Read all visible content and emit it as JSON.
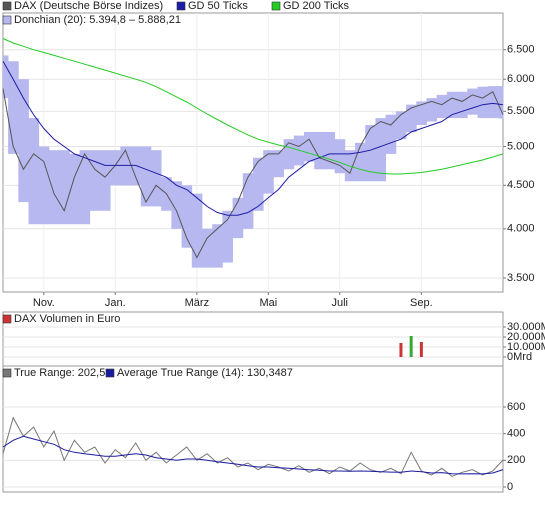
{
  "chart_data": [
    {
      "type": "line",
      "log_y": true,
      "grid": true,
      "categories": [
        null,
        null,
        null,
        null,
        "Nov.",
        null,
        null,
        null,
        null,
        null,
        null,
        "Jan.",
        null,
        null,
        null,
        null,
        null,
        null,
        null,
        "März",
        null,
        null,
        null,
        null,
        null,
        null,
        "Mai",
        null,
        null,
        null,
        null,
        null,
        null,
        "Juli",
        null,
        null,
        null,
        null,
        null,
        null,
        null,
        "Sep.",
        null,
        null,
        null,
        null,
        null,
        null,
        null,
        null
      ],
      "ylim": [
        3370,
        7180
      ],
      "yticks": [
        {
          "value": 3500,
          "label": "3.500"
        },
        {
          "value": 4000,
          "label": "4.000"
        },
        {
          "value": 4500,
          "label": "4.500"
        },
        {
          "value": 5000,
          "label": "5.000"
        },
        {
          "value": 5500,
          "label": "5.500"
        },
        {
          "value": 6000,
          "label": "6.000"
        },
        {
          "value": 6500,
          "label": "6.500"
        }
      ],
      "series": [
        {
          "name": "DAX (Deutsche Börse Indizes)",
          "color": "#555555",
          "values": [
            5850,
            5000,
            4700,
            4900,
            4800,
            4400,
            4200,
            4600,
            4900,
            4700,
            4600,
            4750,
            4950,
            4600,
            4300,
            4500,
            4400,
            4200,
            3900,
            3700,
            3900,
            4000,
            4100,
            4300,
            4600,
            4800,
            4900,
            4900,
            5050,
            5000,
            5100,
            4850,
            4800,
            4750,
            4650,
            5000,
            5250,
            5350,
            5300,
            5450,
            5550,
            5600,
            5650,
            5600,
            5700,
            5650,
            5750,
            5700,
            5800,
            5450
          ]
        },
        {
          "name": "GD 50 Ticks",
          "color": "#1c1ca8",
          "values": [
            6300,
            6000,
            5700,
            5450,
            5250,
            5100,
            5000,
            4900,
            4850,
            4800,
            4750,
            4750,
            4750,
            4750,
            4700,
            4650,
            4600,
            4500,
            4450,
            4350,
            4250,
            4180,
            4150,
            4150,
            4180,
            4250,
            4350,
            4450,
            4600,
            4700,
            4800,
            4850,
            4900,
            4900,
            4900,
            4920,
            4950,
            5000,
            5050,
            5100,
            5200,
            5250,
            5300,
            5350,
            5450,
            5500,
            5550,
            5600,
            5620,
            5600
          ]
        },
        {
          "name": "GD 200 Ticks",
          "color": "#22cc22",
          "values": [
            6700,
            6620,
            6560,
            6500,
            6450,
            6400,
            6350,
            6300,
            6250,
            6200,
            6150,
            6100,
            6050,
            6000,
            5950,
            5880,
            5800,
            5720,
            5640,
            5550,
            5460,
            5380,
            5300,
            5230,
            5160,
            5100,
            5060,
            5020,
            4990,
            4950,
            4910,
            4870,
            4830,
            4790,
            4740,
            4700,
            4670,
            4650,
            4640,
            4640,
            4650,
            4660,
            4680,
            4700,
            4730,
            4760,
            4790,
            4820,
            4860,
            4900
          ]
        },
        {
          "name": "Donchian (20): 5.394,8 – 5.888,21",
          "color": "#b8b8f0",
          "upper": [
            6400,
            6300,
            6000,
            5400,
            5000,
            4950,
            4950,
            4900,
            4950,
            4950,
            4950,
            4950,
            5000,
            5000,
            5000,
            4950,
            4600,
            4550,
            4500,
            4400,
            4000,
            4050,
            4200,
            4350,
            4650,
            4850,
            4950,
            4950,
            5100,
            5150,
            5200,
            5200,
            5200,
            5100,
            4950,
            5050,
            5300,
            5400,
            5450,
            5500,
            5600,
            5650,
            5700,
            5750,
            5800,
            5800,
            5850,
            5880,
            5890,
            5890
          ],
          "lower": [
            5700,
            4900,
            4300,
            4050,
            4050,
            4050,
            4050,
            4050,
            4050,
            4200,
            4200,
            4500,
            4500,
            4500,
            4250,
            4250,
            4200,
            4000,
            3800,
            3600,
            3600,
            3600,
            3650,
            3900,
            4000,
            4200,
            4400,
            4600,
            4700,
            4750,
            4800,
            4700,
            4700,
            4650,
            4550,
            4550,
            4550,
            4550,
            4900,
            5100,
            5200,
            5300,
            5350,
            5400,
            5400,
            5400,
            5450,
            5400,
            5400,
            5395
          ]
        }
      ]
    },
    {
      "type": "bar",
      "title": "DAX Volumen in Euro",
      "color": "#cc3333",
      "grid": true,
      "ylim": [
        -9000,
        45000
      ],
      "yticks": [
        {
          "value": 0,
          "label": "0Mrd"
        },
        {
          "value": 10000,
          "label": "10.000M"
        },
        {
          "value": 20000,
          "label": "20.000M"
        },
        {
          "value": 30000,
          "label": "30.000M"
        }
      ],
      "series": [
        {
          "color": "#cc3333",
          "values": [
            null,
            null,
            null,
            null,
            null,
            null,
            null,
            null,
            null,
            null,
            null,
            null,
            null,
            null,
            null,
            null,
            null,
            null,
            null,
            null,
            null,
            null,
            null,
            null,
            null,
            null,
            null,
            null,
            null,
            null,
            null,
            null,
            null,
            null,
            null,
            null,
            null,
            null,
            null,
            14000,
            null,
            15000,
            null,
            null,
            null,
            null,
            null,
            null,
            null,
            null
          ]
        },
        {
          "color": "#33aa33",
          "values": [
            null,
            null,
            null,
            null,
            null,
            null,
            null,
            null,
            null,
            null,
            null,
            null,
            null,
            null,
            null,
            null,
            null,
            null,
            null,
            null,
            null,
            null,
            null,
            null,
            null,
            null,
            null,
            null,
            null,
            null,
            null,
            null,
            null,
            null,
            null,
            null,
            null,
            null,
            null,
            null,
            21000,
            null,
            null,
            null,
            null,
            null,
            null,
            null,
            null,
            null
          ]
        }
      ]
    },
    {
      "type": "line",
      "grid": true,
      "ylim": [
        -37.5,
        907.5
      ],
      "yticks": [
        0,
        200,
        400,
        600
      ],
      "series": [
        {
          "name": "True Range: 202,5",
          "color": "#777777",
          "values": [
            250,
            520,
            380,
            450,
            300,
            420,
            200,
            350,
            260,
            300,
            180,
            280,
            220,
            330,
            200,
            260,
            180,
            240,
            300,
            200,
            250,
            180,
            220,
            150,
            180,
            130,
            170,
            150,
            120,
            160,
            110,
            140,
            100,
            150,
            120,
            180,
            130,
            110,
            140,
            100,
            260,
            120,
            90,
            140,
            80,
            110,
            130,
            90,
            120,
            202.5
          ]
        },
        {
          "name": "Average True Range (14): 130,3487",
          "color": "#1a1aa0",
          "values": [
            300,
            350,
            380,
            360,
            340,
            320,
            280,
            260,
            250,
            240,
            230,
            230,
            240,
            250,
            240,
            220,
            210,
            200,
            210,
            210,
            200,
            190,
            180,
            170,
            160,
            150,
            150,
            145,
            140,
            135,
            130,
            125,
            120,
            120,
            118,
            120,
            118,
            115,
            112,
            110,
            120,
            115,
            105,
            108,
            100,
            98,
            100,
            98,
            105,
            130.3487
          ]
        }
      ]
    }
  ]
}
